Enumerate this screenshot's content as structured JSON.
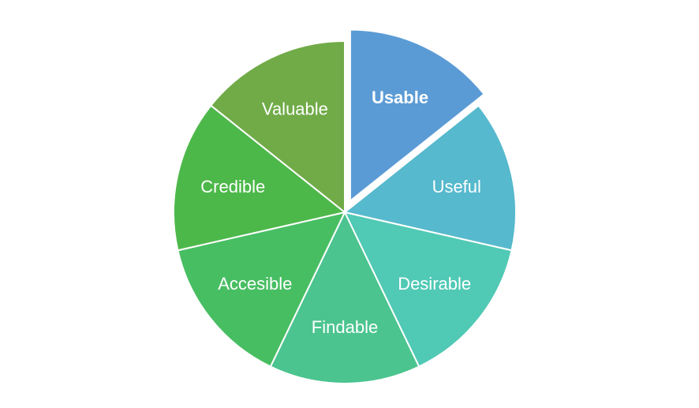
{
  "chart_data": {
    "type": "pie",
    "exploded": "Usable",
    "slices": [
      {
        "label": "Usable",
        "value": 1,
        "color": "#5b9bd5"
      },
      {
        "label": "Useful",
        "value": 1,
        "color": "#56b9cd"
      },
      {
        "label": "Desirable",
        "value": 1,
        "color": "#50c9b5"
      },
      {
        "label": "Findable",
        "value": 1,
        "color": "#4bc48f"
      },
      {
        "label": "Accesible",
        "value": 1,
        "color": "#48be63"
      },
      {
        "label": "Credible",
        "value": 1,
        "color": "#4db84a"
      },
      {
        "label": "Valuable",
        "value": 1,
        "color": "#70ab48"
      }
    ]
  }
}
